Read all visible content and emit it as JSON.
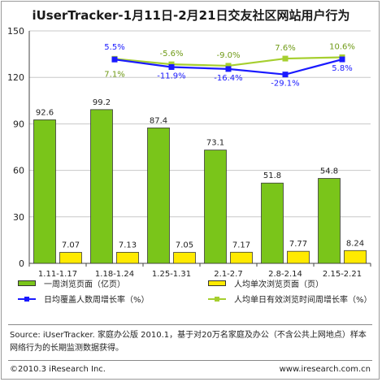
{
  "title": "iUserTracker-1月11日-2月21日交友社区网站用户行为",
  "colors": {
    "bar1": "#7ac51a",
    "bar2": "#ffea00",
    "line1": "#1a1aff",
    "line2": "#a6cf2f",
    "grid": "#c8c8c8",
    "axis": "#444444"
  },
  "legend": {
    "bar1": "一周浏览页面（亿页）",
    "bar2": "人均单次浏览页面（页）",
    "line1": "日均覆盖人数周增长率（%）",
    "line2": "人均单日有效浏览时间周增长率（%）"
  },
  "chart_data": {
    "type": "bar",
    "title": "iUserTracker-1月11日-2月21日交友社区网站用户行为",
    "categories": [
      "1.11-1.17",
      "1.18-1.24",
      "1.25-1.31",
      "2.1-2.7",
      "2.8-2.14",
      "2.15-2.21"
    ],
    "ylim": [
      0,
      150
    ],
    "yticks": [
      0,
      30,
      60,
      90,
      120,
      150
    ],
    "grid": true,
    "legend_position": "bottom",
    "series": [
      {
        "name": "一周浏览页面（亿页）",
        "kind": "bar",
        "values": [
          92.6,
          99.2,
          87.4,
          73.1,
          51.8,
          54.8
        ],
        "labels": [
          "92.6",
          "99.2",
          "87.4",
          "73.1",
          "51.8",
          "54.8"
        ]
      },
      {
        "name": "人均单次浏览页面（页）",
        "kind": "bar",
        "values": [
          7.07,
          7.13,
          7.05,
          7.17,
          7.77,
          8.24
        ],
        "labels": [
          "7.07",
          "7.13",
          "7.05",
          "7.17",
          "7.77",
          "8.24"
        ]
      },
      {
        "name": "日均覆盖人数周增长率（%）",
        "kind": "line",
        "values": [
          null,
          5.5,
          -11.9,
          -16.4,
          -29.1,
          5.8
        ],
        "labels": [
          "",
          "5.5%",
          "-11.9%",
          "-16.4%",
          "-29.1%",
          "5.8%"
        ]
      },
      {
        "name": "人均单日有效浏览时间周增长率（%）",
        "kind": "line",
        "values": [
          null,
          7.1,
          -5.6,
          -9.0,
          7.6,
          10.6
        ],
        "labels": [
          "",
          "7.1%",
          "-5.6%",
          "-9.0%",
          "7.6%",
          "10.6%"
        ]
      }
    ]
  },
  "footer": {
    "source": "Source: iUserTracker. 家庭办公版 2010.1，基于对20万名家庭及办公（不含公共上网地点）样本网络行为的长期监测数据获得。",
    "copyright": "©2010.3 iResearch Inc.",
    "website": "www.iresearch.com.cn"
  }
}
